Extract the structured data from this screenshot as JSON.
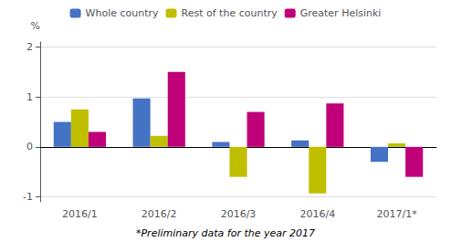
{
  "chart_data": {
    "type": "bar",
    "categories": [
      "2016/1",
      "2016/2",
      "2016/3",
      "2016/4",
      "2017/1*"
    ],
    "series": [
      {
        "name": "Whole country",
        "color": "#4472C4",
        "values": [
          0.5,
          0.97,
          0.1,
          0.13,
          -0.3
        ]
      },
      {
        "name": "Rest of the country",
        "color": "#BFBF00",
        "values": [
          0.75,
          0.22,
          -0.6,
          -0.93,
          0.07
        ]
      },
      {
        "name": "Greater Helsinki",
        "color": "#C00078",
        "values": [
          0.3,
          1.5,
          0.7,
          0.87,
          -0.6
        ]
      }
    ],
    "ylabel": "%",
    "annotations": [
      "*Preliminary data for the year 2017"
    ],
    "ylim": [
      -1.1,
      2.1
    ],
    "yticks": [
      -1,
      0,
      1,
      2
    ],
    "grid": true,
    "legend": "top"
  }
}
